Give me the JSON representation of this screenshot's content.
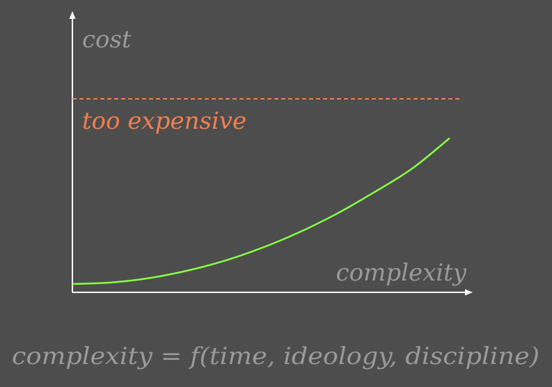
{
  "chart_data": {
    "type": "line",
    "xlabel": "complexity",
    "ylabel": "cost",
    "formula": "complexity = f(time, ideology, discipline)",
    "threshold": {
      "label": "too expensive",
      "value": 0.75
    },
    "series": [
      {
        "x": [
          0,
          0.1,
          0.2,
          0.3,
          0.4,
          0.5,
          0.6,
          0.7,
          0.8,
          0.9,
          1.0
        ],
        "values": [
          0.0,
          0.006,
          0.024,
          0.055,
          0.097,
          0.152,
          0.219,
          0.298,
          0.39,
          0.49,
          0.62
        ],
        "note": "convex (exponential-like) curve"
      }
    ],
    "xlim": [
      0,
      1
    ],
    "ylim": [
      0,
      1
    ],
    "grid": false,
    "colors": {
      "background": "#4d4d4d",
      "axes": "#ffffff",
      "curve": "#88ff44",
      "threshold": "#f08050",
      "labels": "#9a9a9a"
    }
  }
}
